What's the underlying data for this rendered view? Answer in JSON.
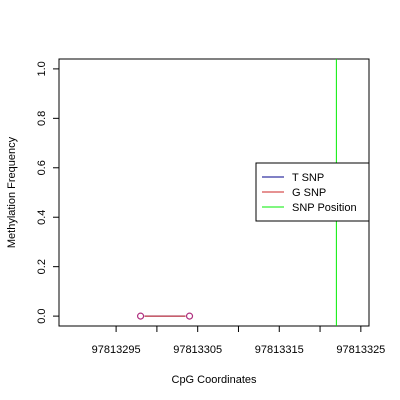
{
  "chart_data": {
    "type": "line",
    "title": "",
    "xlabel": "CpG Coordinates",
    "ylabel": "Methylation Frequency",
    "xlim": [
      97813288,
      97813326
    ],
    "ylim": [
      -0.04,
      1.04
    ],
    "x_ticks": [
      97813295,
      97813300,
      97813305,
      97813310,
      97813315,
      97813320,
      97813325
    ],
    "x_tick_labels": [
      "97813295",
      "",
      "97813305",
      "",
      "97813315",
      "",
      "97813325"
    ],
    "y_ticks": [
      0.0,
      0.2,
      0.4,
      0.6,
      0.8,
      1.0
    ],
    "y_tick_labels": [
      "0.0",
      "0.2",
      "0.4",
      "0.6",
      "0.8",
      "1.0"
    ],
    "grid": false,
    "legend_placement": "right",
    "series": [
      {
        "name": "T SNP",
        "color": "#00008B",
        "x": [
          97813298,
          97813304
        ],
        "y": [
          0,
          0
        ]
      },
      {
        "name": "G SNP",
        "color": "#CD2626",
        "x": [
          97813298,
          97813304
        ],
        "y": [
          0,
          0
        ]
      }
    ],
    "marker_color": "#B0307F",
    "snp_position": {
      "name": "SNP Position",
      "color": "#00EE00",
      "x": 97813322
    }
  }
}
